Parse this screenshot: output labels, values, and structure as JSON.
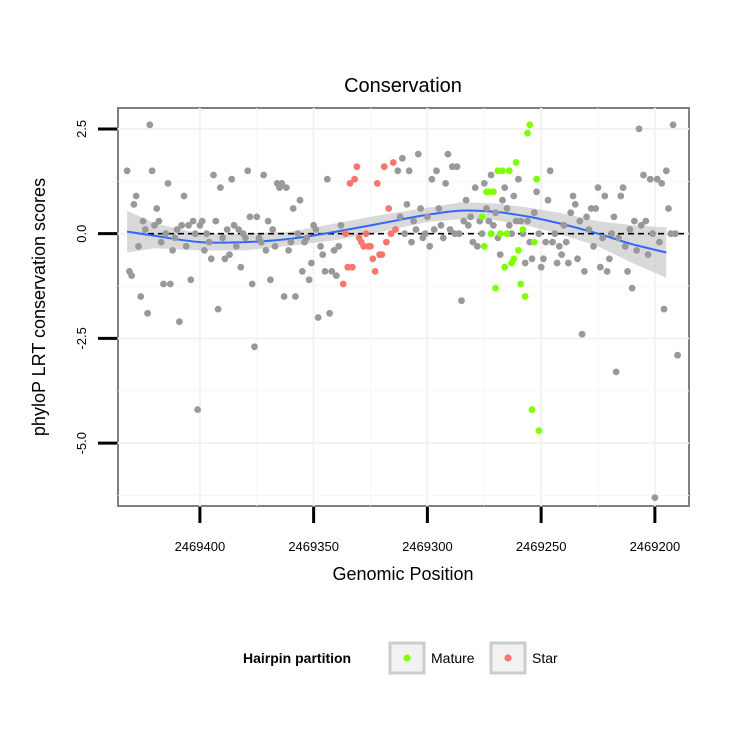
{
  "chart_data": {
    "type": "scatter",
    "title": "Conservation",
    "xlabel": "Genomic Position",
    "ylabel": "phyloP LRT conservation scores",
    "x_reversed": true,
    "xlim": [
      2469436,
      2469185
    ],
    "ylim": [
      -6.5,
      3.0
    ],
    "x_ticks": [
      2469400,
      2469350,
      2469300,
      2469250,
      2469200
    ],
    "x_tick_labels": [
      "2469400",
      "2469350",
      "2469300",
      "2469250",
      "2469200"
    ],
    "y_ticks": [
      2.5,
      0.0,
      -2.5,
      -5.0
    ],
    "y_tick_labels": [
      "2.5",
      "0.0",
      "-2.5",
      "-5.0"
    ],
    "reference_line": {
      "y": 0,
      "style": "dashed",
      "color": "#000000"
    },
    "grid": true,
    "legend": {
      "title": "Hairpin partition",
      "position": "bottom",
      "entries": [
        {
          "label": "Mature",
          "color": "#7FFF00"
        },
        {
          "label": "Star",
          "color": "#F8766D"
        }
      ]
    },
    "series": [
      {
        "color": "#999999",
        "points": [
          [
            2469432,
            1.5
          ],
          [
            2469431,
            -0.9
          ],
          [
            2469430,
            -1.0
          ],
          [
            2469429,
            0.7
          ],
          [
            2469428,
            0.9
          ],
          [
            2469427,
            -0.3
          ],
          [
            2469426,
            -1.5
          ],
          [
            2469425,
            0.3
          ],
          [
            2469424,
            0.1
          ],
          [
            2469423,
            -1.9
          ],
          [
            2469422,
            2.6
          ],
          [
            2469421,
            1.5
          ],
          [
            2469420,
            0.2
          ],
          [
            2469419,
            0.6
          ],
          [
            2469418,
            0.3
          ],
          [
            2469417,
            -0.2
          ],
          [
            2469416,
            -1.2
          ],
          [
            2469415,
            0.0
          ],
          [
            2469414,
            1.2
          ],
          [
            2469413,
            -1.2
          ],
          [
            2469412,
            -0.4
          ],
          [
            2469411,
            -0.1
          ],
          [
            2469410,
            0.1
          ],
          [
            2469409,
            -2.1
          ],
          [
            2469408,
            0.2
          ],
          [
            2469407,
            0.9
          ],
          [
            2469406,
            -0.3
          ],
          [
            2469405,
            0.2
          ],
          [
            2469404,
            -1.1
          ],
          [
            2469403,
            0.3
          ],
          [
            2469402,
            0.0
          ],
          [
            2469401,
            -4.2
          ],
          [
            2469400,
            0.2
          ],
          [
            2469399,
            0.3
          ],
          [
            2469398,
            -0.4
          ],
          [
            2469397,
            0.0
          ],
          [
            2469396,
            -0.2
          ],
          [
            2469395,
            -0.6
          ],
          [
            2469394,
            1.4
          ],
          [
            2469393,
            0.3
          ],
          [
            2469392,
            -1.8
          ],
          [
            2469391,
            1.1
          ],
          [
            2469390,
            -0.1
          ],
          [
            2469389,
            -0.6
          ],
          [
            2469388,
            0.1
          ],
          [
            2469387,
            -0.5
          ],
          [
            2469386,
            1.3
          ],
          [
            2469385,
            0.2
          ],
          [
            2469384,
            -0.3
          ],
          [
            2469383,
            0.1
          ],
          [
            2469382,
            -0.8
          ],
          [
            2469381,
            0.0
          ],
          [
            2469380,
            -0.1
          ],
          [
            2469379,
            1.5
          ],
          [
            2469378,
            0.4
          ],
          [
            2469377,
            -1.2
          ],
          [
            2469376,
            -2.7
          ],
          [
            2469375,
            0.4
          ],
          [
            2469374,
            -0.1
          ],
          [
            2469373,
            -0.2
          ],
          [
            2469372,
            1.4
          ],
          [
            2469371,
            -0.4
          ],
          [
            2469370,
            0.3
          ],
          [
            2469369,
            -1.1
          ],
          [
            2469368,
            0.1
          ],
          [
            2469367,
            -0.3
          ],
          [
            2469366,
            1.2
          ],
          [
            2469365,
            1.1
          ],
          [
            2469364,
            1.2
          ],
          [
            2469363,
            -1.5
          ],
          [
            2469362,
            1.1
          ],
          [
            2469361,
            -0.4
          ],
          [
            2469360,
            -0.2
          ],
          [
            2469359,
            0.6
          ],
          [
            2469358,
            -1.5
          ],
          [
            2469357,
            0.0
          ],
          [
            2469356,
            0.8
          ],
          [
            2469355,
            -0.9
          ],
          [
            2469354,
            -0.2
          ],
          [
            2469353,
            -0.1
          ],
          [
            2469352,
            -1.1
          ],
          [
            2469351,
            -0.7
          ],
          [
            2469350,
            0.2
          ],
          [
            2469349,
            0.1
          ],
          [
            2469348,
            -2.0
          ],
          [
            2469347,
            -0.3
          ],
          [
            2469346,
            -0.5
          ],
          [
            2469345,
            -0.9
          ],
          [
            2469344,
            1.3
          ],
          [
            2469343,
            -1.9
          ],
          [
            2469342,
            -0.9
          ],
          [
            2469341,
            -0.4
          ],
          [
            2469340,
            -1.0
          ],
          [
            2469339,
            -0.3
          ],
          [
            2469338,
            0.2
          ],
          [
            2469313,
            1.5
          ],
          [
            2469312,
            0.4
          ],
          [
            2469311,
            1.8
          ],
          [
            2469310,
            0.0
          ],
          [
            2469309,
            0.7
          ],
          [
            2469308,
            1.5
          ],
          [
            2469307,
            -0.2
          ],
          [
            2469306,
            0.3
          ],
          [
            2469305,
            0.1
          ],
          [
            2469304,
            1.9
          ],
          [
            2469303,
            0.6
          ],
          [
            2469302,
            -0.1
          ],
          [
            2469301,
            0.0
          ],
          [
            2469300,
            0.4
          ],
          [
            2469299,
            -0.3
          ],
          [
            2469298,
            1.3
          ],
          [
            2469297,
            0.1
          ],
          [
            2469296,
            1.5
          ],
          [
            2469295,
            0.6
          ],
          [
            2469294,
            0.2
          ],
          [
            2469293,
            -0.1
          ],
          [
            2469292,
            1.2
          ],
          [
            2469291,
            1.9
          ],
          [
            2469290,
            0.1
          ],
          [
            2469289,
            1.6
          ],
          [
            2469288,
            0.0
          ],
          [
            2469287,
            1.6
          ],
          [
            2469286,
            0.0
          ],
          [
            2469285,
            -1.6
          ],
          [
            2469284,
            0.3
          ],
          [
            2469283,
            0.8
          ],
          [
            2469282,
            0.2
          ],
          [
            2469281,
            0.4
          ],
          [
            2469280,
            -0.2
          ],
          [
            2469279,
            1.1
          ],
          [
            2469278,
            -0.3
          ],
          [
            2469277,
            0.3
          ],
          [
            2469276,
            0.0
          ],
          [
            2469275,
            1.2
          ],
          [
            2469274,
            0.6
          ],
          [
            2469273,
            0.3
          ],
          [
            2469272,
            1.4
          ],
          [
            2469271,
            0.2
          ],
          [
            2469270,
            0.5
          ],
          [
            2469269,
            -0.1
          ],
          [
            2469268,
            -0.5
          ],
          [
            2469267,
            0.8
          ],
          [
            2469266,
            1.1
          ],
          [
            2469265,
            0.6
          ],
          [
            2469264,
            0.2
          ],
          [
            2469263,
            0.0
          ],
          [
            2469262,
            0.9
          ],
          [
            2469261,
            0.3
          ],
          [
            2469260,
            1.3
          ],
          [
            2469259,
            0.3
          ],
          [
            2469258,
            0.0
          ],
          [
            2469257,
            -0.7
          ],
          [
            2469256,
            0.3
          ],
          [
            2469255,
            -0.2
          ],
          [
            2469254,
            -0.6
          ],
          [
            2469253,
            0.5
          ],
          [
            2469252,
            1.0
          ],
          [
            2469251,
            0.0
          ],
          [
            2469250,
            -0.8
          ],
          [
            2469249,
            -0.6
          ],
          [
            2469248,
            -0.2
          ],
          [
            2469247,
            0.8
          ],
          [
            2469246,
            1.5
          ],
          [
            2469245,
            -0.2
          ],
          [
            2469244,
            0.0
          ],
          [
            2469243,
            -0.7
          ],
          [
            2469242,
            -0.3
          ],
          [
            2469241,
            -0.5
          ],
          [
            2469240,
            0.2
          ],
          [
            2469239,
            -0.2
          ],
          [
            2469238,
            -0.7
          ],
          [
            2469237,
            0.5
          ],
          [
            2469236,
            0.9
          ],
          [
            2469235,
            0.7
          ],
          [
            2469234,
            -0.6
          ],
          [
            2469233,
            0.3
          ],
          [
            2469232,
            -2.4
          ],
          [
            2469231,
            -0.9
          ],
          [
            2469230,
            0.4
          ],
          [
            2469229,
            0.1
          ],
          [
            2469228,
            0.6
          ],
          [
            2469227,
            -0.3
          ],
          [
            2469226,
            0.6
          ],
          [
            2469225,
            1.1
          ],
          [
            2469224,
            -0.8
          ],
          [
            2469223,
            -0.1
          ],
          [
            2469222,
            0.9
          ],
          [
            2469221,
            -0.9
          ],
          [
            2469220,
            -0.6
          ],
          [
            2469219,
            0.0
          ],
          [
            2469218,
            0.4
          ],
          [
            2469217,
            -3.3
          ],
          [
            2469216,
            -0.1
          ],
          [
            2469215,
            0.9
          ],
          [
            2469214,
            1.1
          ],
          [
            2469213,
            -0.3
          ],
          [
            2469212,
            -0.9
          ],
          [
            2469211,
            0.1
          ],
          [
            2469210,
            -1.3
          ],
          [
            2469209,
            0.3
          ],
          [
            2469208,
            -0.4
          ],
          [
            2469207,
            2.5
          ],
          [
            2469206,
            0.2
          ],
          [
            2469205,
            1.4
          ],
          [
            2469204,
            0.3
          ],
          [
            2469203,
            -0.5
          ],
          [
            2469202,
            1.3
          ],
          [
            2469201,
            0.0
          ],
          [
            2469200,
            -6.3
          ],
          [
            2469199,
            1.3
          ],
          [
            2469198,
            -0.2
          ],
          [
            2469197,
            1.2
          ],
          [
            2469196,
            -1.8
          ],
          [
            2469195,
            1.5
          ],
          [
            2469194,
            0.6
          ],
          [
            2469193,
            0.0
          ],
          [
            2469192,
            2.6
          ],
          [
            2469191,
            0.0
          ],
          [
            2469190,
            -2.9
          ]
        ]
      },
      {
        "name": "Star",
        "color": "#F8766D",
        "points": [
          [
            2469337,
            -1.2
          ],
          [
            2469336,
            0.0
          ],
          [
            2469335,
            -0.8
          ],
          [
            2469334,
            1.2
          ],
          [
            2469333,
            -0.8
          ],
          [
            2469332,
            1.3
          ],
          [
            2469331,
            1.6
          ],
          [
            2469330,
            -0.1
          ],
          [
            2469329,
            -0.2
          ],
          [
            2469328,
            -0.3
          ],
          [
            2469327,
            0.0
          ],
          [
            2469326,
            -0.3
          ],
          [
            2469325,
            -0.3
          ],
          [
            2469324,
            -0.6
          ],
          [
            2469323,
            -0.9
          ],
          [
            2469322,
            1.2
          ],
          [
            2469321,
            -0.5
          ],
          [
            2469320,
            -0.5
          ],
          [
            2469319,
            1.6
          ],
          [
            2469318,
            -0.2
          ],
          [
            2469317,
            0.6
          ],
          [
            2469316,
            0.0
          ],
          [
            2469315,
            1.7
          ],
          [
            2469314,
            0.1
          ]
        ]
      },
      {
        "name": "Mature",
        "color": "#7FFF00",
        "points": [
          [
            2469276,
            0.4
          ],
          [
            2469275,
            -0.3
          ],
          [
            2469274,
            1.0
          ],
          [
            2469273,
            1.0
          ],
          [
            2469272,
            0.0
          ],
          [
            2469271,
            1.0
          ],
          [
            2469270,
            -1.3
          ],
          [
            2469269,
            1.5
          ],
          [
            2469268,
            0.0
          ],
          [
            2469267,
            1.5
          ],
          [
            2469266,
            -0.8
          ],
          [
            2469265,
            0.0
          ],
          [
            2469264,
            1.5
          ],
          [
            2469263,
            -0.7
          ],
          [
            2469262,
            -0.6
          ],
          [
            2469261,
            1.7
          ],
          [
            2469260,
            -0.4
          ],
          [
            2469259,
            -1.2
          ],
          [
            2469258,
            0.1
          ],
          [
            2469257,
            -1.5
          ],
          [
            2469256,
            2.4
          ],
          [
            2469255,
            2.6
          ],
          [
            2469254,
            -4.2
          ],
          [
            2469253,
            -0.2
          ],
          [
            2469252,
            1.3
          ],
          [
            2469251,
            -4.7
          ]
        ]
      }
    ],
    "smooth": {
      "color": "#3366FF",
      "band_color": "#CCCCCC",
      "x": [
        2469432,
        2469420,
        2469400,
        2469380,
        2469360,
        2469340,
        2469320,
        2469300,
        2469285,
        2469270,
        2469255,
        2469240,
        2469225,
        2469210,
        2469195
      ],
      "y": [
        0.05,
        -0.05,
        -0.2,
        -0.2,
        -0.12,
        0.05,
        0.25,
        0.45,
        0.55,
        0.52,
        0.4,
        0.22,
        0.0,
        -0.25,
        -0.45
      ],
      "upper": [
        0.55,
        0.25,
        0.0,
        0.0,
        0.05,
        0.25,
        0.45,
        0.62,
        0.75,
        0.72,
        0.62,
        0.48,
        0.3,
        0.2,
        0.15
      ],
      "lower": [
        -0.45,
        -0.35,
        -0.4,
        -0.4,
        -0.29,
        -0.15,
        0.05,
        0.28,
        0.35,
        0.32,
        0.18,
        -0.04,
        -0.3,
        -0.7,
        -1.05
      ]
    }
  }
}
